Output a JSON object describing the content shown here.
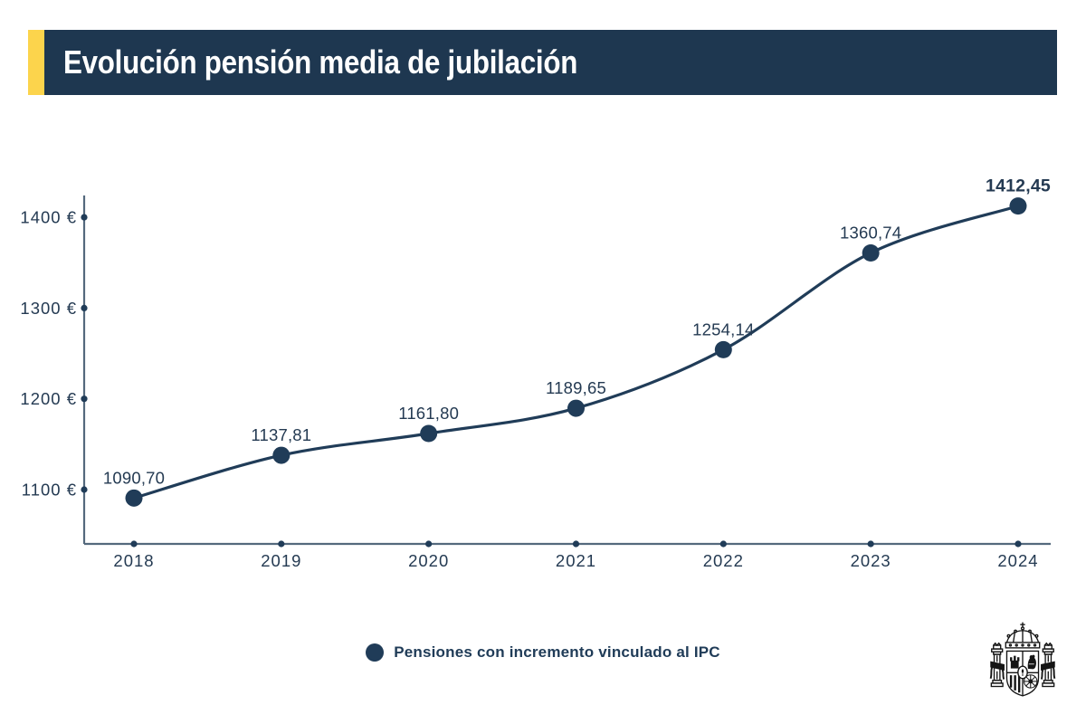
{
  "header": {
    "title": "Evolución pensión media de jubilación",
    "accent_color": "#fcd44c",
    "bar_color": "#1e3750"
  },
  "chart_data": {
    "type": "line",
    "title": "Evolución pensión media de jubilación",
    "x": [
      "2018",
      "2019",
      "2020",
      "2021",
      "2022",
      "2023",
      "2024"
    ],
    "series": [
      {
        "name": "Pensiones con incremento vinculado al IPC",
        "values": [
          1090.7,
          1137.81,
          1161.8,
          1189.65,
          1254.14,
          1360.74,
          1412.45
        ]
      }
    ],
    "point_labels": [
      "1090,70",
      "1137,81",
      "1161,80",
      "1189,65",
      "1254,14",
      "1360,74",
      "1412,45"
    ],
    "last_point_label_bold": true,
    "y_ticks": [
      {
        "value": 1400,
        "label": "1400 €"
      },
      {
        "value": 1300,
        "label": "1300 €"
      },
      {
        "value": 1200,
        "label": "1200 €"
      },
      {
        "value": 1100,
        "label": "1100 €"
      }
    ],
    "ylim": [
      1050,
      1450
    ],
    "grid": false,
    "legend_position": "bottom",
    "line_color": "#203c58",
    "axis_color": "#54697d",
    "label_color": "#243a52"
  },
  "legend": {
    "label": "Pensiones con incremento vinculado al IPC",
    "marker_color": "#203c58"
  },
  "footer": {
    "logo_icon": "spain-coat-of-arms"
  }
}
